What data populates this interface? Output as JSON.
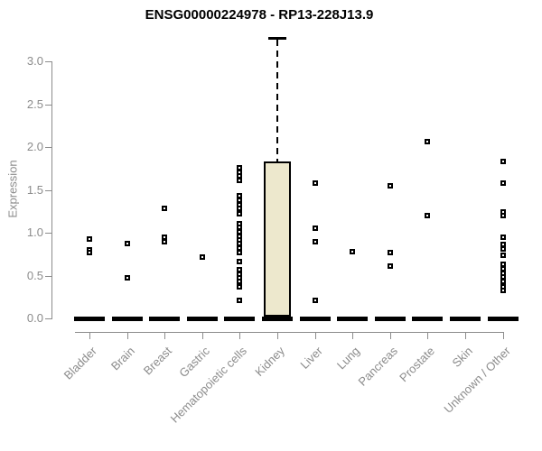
{
  "chart_data": {
    "type": "boxplot",
    "title": "ENSG00000224978 - RP13-228J13.9",
    "ylabel": "Expression",
    "xlabel": "",
    "ylim": [
      0,
      3.3
    ],
    "ytick_labels": [
      "0.0",
      "0.5",
      "1.0",
      "1.5",
      "2.0",
      "2.5",
      "3.0"
    ],
    "ytick_values": [
      0,
      0.5,
      1,
      1.5,
      2,
      2.5,
      3
    ],
    "grid": false,
    "legend": false,
    "categories": [
      "Bladder",
      "Brain",
      "Breast",
      "Gastric",
      "Hematopoietic cells",
      "Kidney",
      "Liver",
      "Lung",
      "Pancreas",
      "Prostate",
      "Skin",
      "Unknown / Other"
    ],
    "boxes": [
      {
        "category": "Bladder",
        "median": 0,
        "q1": 0,
        "q3": 0,
        "whisker_low": 0,
        "whisker_high": 0,
        "outliers": [
          0.93,
          0.8,
          0.77
        ]
      },
      {
        "category": "Brain",
        "median": 0,
        "q1": 0,
        "q3": 0,
        "whisker_low": 0,
        "whisker_high": 0,
        "outliers": [
          0.87,
          0.47
        ]
      },
      {
        "category": "Breast",
        "median": 0,
        "q1": 0,
        "q3": 0,
        "whisker_low": 0,
        "whisker_high": 0,
        "outliers": [
          1.28,
          0.95,
          0.89
        ]
      },
      {
        "category": "Gastric",
        "median": 0,
        "q1": 0,
        "q3": 0,
        "whisker_low": 0,
        "whisker_high": 0,
        "outliers": [
          0.72
        ]
      },
      {
        "category": "Hematopoietic cells",
        "median": 0,
        "q1": 0,
        "q3": 0,
        "whisker_low": 0,
        "whisker_high": 0,
        "outliers": [
          1.76,
          1.71,
          1.66,
          1.61,
          1.43,
          1.38,
          1.33,
          1.28,
          1.22,
          1.11,
          1.06,
          1.01,
          0.96,
          0.92,
          0.87,
          0.82,
          0.77,
          0.66,
          0.57,
          0.52,
          0.47,
          0.43,
          0.37,
          0.21
        ]
      },
      {
        "category": "Kidney",
        "median": 0,
        "q1": 0,
        "q3": 1.83,
        "whisker_low": 0,
        "whisker_high": 3.27,
        "outliers": []
      },
      {
        "category": "Liver",
        "median": 0,
        "q1": 0,
        "q3": 0,
        "whisker_low": 0,
        "whisker_high": 0,
        "outliers": [
          1.58,
          1.05,
          0.9,
          0.21
        ]
      },
      {
        "category": "Lung",
        "median": 0,
        "q1": 0,
        "q3": 0,
        "whisker_low": 0,
        "whisker_high": 0,
        "outliers": [
          0.78
        ]
      },
      {
        "category": "Pancreas",
        "median": 0,
        "q1": 0,
        "q3": 0,
        "whisker_low": 0,
        "whisker_high": 0,
        "outliers": [
          1.55,
          0.77,
          0.61
        ]
      },
      {
        "category": "Prostate",
        "median": 0,
        "q1": 0,
        "q3": 0,
        "whisker_low": 0,
        "whisker_high": 0,
        "outliers": [
          2.06,
          1.2
        ]
      },
      {
        "category": "Skin",
        "median": 0,
        "q1": 0,
        "q3": 0,
        "whisker_low": 0,
        "whisker_high": 0,
        "outliers": []
      },
      {
        "category": "Unknown / Other",
        "median": 0,
        "q1": 0,
        "q3": 0,
        "whisker_low": 0,
        "whisker_high": 0,
        "outliers": [
          1.83,
          1.58,
          1.24,
          1.2,
          0.95,
          0.86,
          0.81,
          0.74,
          0.63,
          0.58,
          0.53,
          0.48,
          0.43,
          0.37,
          0.33
        ]
      }
    ],
    "colors": {
      "box_fill": "#ede8cd",
      "box_border": "#000000",
      "axis": "#8c8c8c",
      "label_text": "#8c8c8c",
      "title_text": "#000000",
      "outlier": "#000000"
    }
  }
}
